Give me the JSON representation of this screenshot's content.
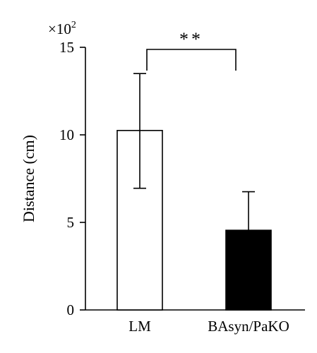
{
  "chart_data": {
    "type": "bar",
    "categories": [
      "LM",
      "BAsyn/PaKO"
    ],
    "values": [
      10.25,
      4.55
    ],
    "error_upper": [
      13.5,
      6.75
    ],
    "error_lower": [
      6.95,
      null
    ],
    "bar_fills": [
      "#ffffff",
      "#000000"
    ],
    "title": "",
    "xlabel": "",
    "ylabel": "Distance (cm)",
    "ylim": [
      0,
      15
    ],
    "yticks": [
      0,
      5,
      10,
      15
    ],
    "y_multiplier_base": "×10",
    "y_multiplier_exp": "2",
    "significance": {
      "label": "**",
      "between": [
        "LM",
        "BAsyn/PaKO"
      ]
    },
    "grid": false,
    "legend": "none"
  }
}
